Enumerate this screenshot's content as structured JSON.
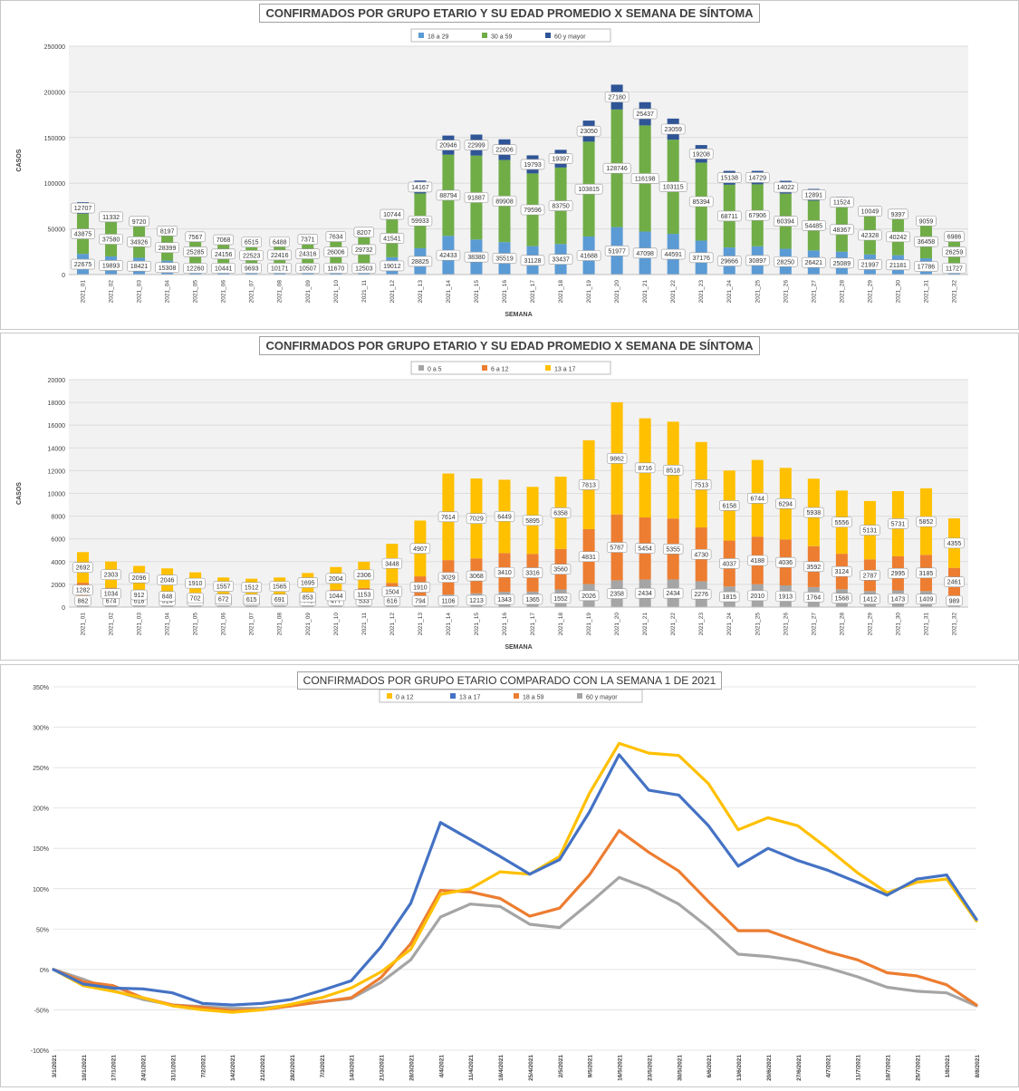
{
  "chart_data": [
    {
      "type": "bar",
      "stacked": true,
      "title": "CONFIRMADOS POR GRUPO ETARIO Y SU EDAD PROMEDIO X SEMANA DE SÍNTOMA",
      "xlabel": "SEMANA",
      "ylabel": "CASOS",
      "ylim": [
        0,
        250000
      ],
      "yticks": [
        "0",
        "50000",
        "100000",
        "150000",
        "200000",
        "250000"
      ],
      "legend_position": "top",
      "categories": [
        "2021_01",
        "2021_02",
        "2021_03",
        "2021_04",
        "2021_05",
        "2021_06",
        "2021_07",
        "2021_08",
        "2021_09",
        "2021_10",
        "2021_11",
        "2021_12",
        "2021_13",
        "2021_14",
        "2021_15",
        "2021_16",
        "2021_17",
        "2021_18",
        "2021_19",
        "2021_20",
        "2021_21",
        "2021_22",
        "2021_23",
        "2021_24",
        "2021_25",
        "2021_26",
        "2021_27",
        "2021_28",
        "2021_29",
        "2021_30",
        "2021_31",
        "2021_32"
      ],
      "series": [
        {
          "name": "18 a 29",
          "color": "#5b9bd5",
          "values": [
            22675,
            19893,
            18421,
            15308,
            12260,
            10441,
            9693,
            10171,
            10507,
            11670,
            12503,
            19012,
            28825,
            42433,
            38380,
            35519,
            31128,
            33437,
            41688,
            51977,
            47098,
            44591,
            37176,
            29666,
            30897,
            28250,
            26421,
            25089,
            21997,
            21181,
            17786,
            11727
          ]
        },
        {
          "name": "30 a 59",
          "color": "#70ad47",
          "values": [
            43875,
            37580,
            34926,
            28399,
            25285,
            24156,
            22523,
            22416,
            24316,
            26006,
            29732,
            41541,
            59933,
            88794,
            91887,
            89908,
            79596,
            83750,
            103815,
            128746,
            116198,
            103115,
            85394,
            68711,
            67906,
            60394,
            54485,
            48367,
            42328,
            40242,
            36458,
            26259
          ]
        },
        {
          "name": "60 y mayor",
          "color": "#2f5597",
          "values": [
            12707,
            11332,
            9720,
            8197,
            7567,
            7068,
            6515,
            6488,
            7371,
            7634,
            8207,
            10744,
            14167,
            20946,
            22999,
            22606,
            19793,
            19397,
            23050,
            27180,
            25437,
            23059,
            19208,
            15138,
            14729,
            14022,
            12891,
            11524,
            10049,
            9397,
            9059,
            6986
          ]
        }
      ]
    },
    {
      "type": "bar",
      "stacked": true,
      "title": "CONFIRMADOS POR GRUPO ETARIO Y SU EDAD PROMEDIO X SEMANA DE SÍNTOMA",
      "xlabel": "SEMANA",
      "ylabel": "CASOS",
      "ylim": [
        0,
        20000
      ],
      "yticks": [
        "0",
        "2000",
        "4000",
        "6000",
        "8000",
        "10000",
        "12000",
        "14000",
        "16000",
        "18000",
        "20000"
      ],
      "legend_position": "top",
      "categories": [
        "2021_01",
        "2021_02",
        "2021_03",
        "2021_04",
        "2021_05",
        "2021_06",
        "2021_07",
        "2021_08",
        "2021_09",
        "2021_10",
        "2021_11",
        "2021_12",
        "2021_13",
        "2021_14",
        "2021_15",
        "2021_16",
        "2021_17",
        "2021_18",
        "2021_19",
        "2021_20",
        "2021_21",
        "2021_22",
        "2021_23",
        "2021_24",
        "2021_25",
        "2021_26",
        "2021_27",
        "2021_28",
        "2021_29",
        "2021_30",
        "2021_31",
        "2021_32"
      ],
      "series": [
        {
          "name": "0 a 5",
          "color": "#a5a5a5",
          "values": [
            862,
            674,
            618,
            514,
            445,
            377,
            371,
            350,
            448,
            477,
            533,
            616,
            794,
            1106,
            1213,
            1343,
            1365,
            1552,
            2026,
            2358,
            2434,
            2434,
            2276,
            1815,
            2010,
            1913,
            1764,
            1568,
            1412,
            1473,
            1409,
            989
          ]
        },
        {
          "name": "6 a 12",
          "color": "#ed7d31",
          "values": [
            1282,
            1034,
            912,
            848,
            702,
            672,
            615,
            691,
            853,
            1044,
            1153,
            1504,
            1910,
            3029,
            3068,
            3410,
            3316,
            3560,
            4831,
            5787,
            5454,
            5355,
            4730,
            4037,
            4188,
            4036,
            3592,
            3124,
            2787,
            2995,
            3185,
            2461
          ]
        },
        {
          "name": "13 a 17",
          "color": "#ffc000",
          "values": [
            2692,
            2303,
            2096,
            2046,
            1910,
            1557,
            1512,
            1565,
            1695,
            2004,
            2306,
            3448,
            4907,
            7614,
            7029,
            6449,
            5895,
            6358,
            7813,
            9862,
            8716,
            8518,
            7513,
            6158,
            6744,
            6294,
            5938,
            5556,
            5131,
            5731,
            5852,
            4355
          ]
        }
      ]
    },
    {
      "type": "line",
      "title": "CONFIRMADOS POR GRUPO ETARIO COMPARADO CON LA SEMANA 1 DE 2021",
      "ylim": [
        -100,
        350
      ],
      "yticks": [
        "-100%",
        "-50%",
        "0%",
        "50%",
        "100%",
        "150%",
        "200%",
        "250%",
        "300%",
        "350%"
      ],
      "legend_position": "top",
      "x": [
        "3/1/2021",
        "10/1/2021",
        "17/1/2021",
        "24/1/2021",
        "31/1/2021",
        "7/2/2021",
        "14/2/2021",
        "21/2/2021",
        "28/2/2021",
        "7/3/2021",
        "14/3/2021",
        "21/3/2021",
        "28/3/2021",
        "4/4/2021",
        "11/4/2021",
        "18/4/2021",
        "25/4/2021",
        "2/5/2021",
        "9/5/2021",
        "16/5/2021",
        "23/5/2021",
        "30/5/2021",
        "6/6/2021",
        "13/6/2021",
        "20/6/2021",
        "27/6/2021",
        "4/7/2021",
        "11/7/2021",
        "18/7/2021",
        "25/7/2021",
        "1/8/2021",
        "8/8/2021"
      ],
      "series": [
        {
          "name": "0 a 12",
          "color": "#ffc000",
          "values": [
            0,
            -20,
            -27,
            -35,
            -45,
            -50,
            -53,
            -50,
            -43,
            -35,
            -23,
            -3,
            25,
            93,
            100,
            121,
            118,
            140,
            218,
            280,
            268,
            265,
            230,
            173,
            188,
            178,
            150,
            120,
            95,
            108,
            112,
            60
          ]
        },
        {
          "name": "13 a 17",
          "color": "#4472c4",
          "values": [
            0,
            -18,
            -23,
            -24,
            -29,
            -42,
            -44,
            -42,
            -37,
            -26,
            -14,
            28,
            82,
            182,
            161,
            140,
            118,
            136,
            195,
            266,
            222,
            216,
            178,
            128,
            150,
            135,
            123,
            108,
            92,
            112,
            117,
            62
          ]
        },
        {
          "name": "18 a 59",
          "color": "#ed7d31",
          "values": [
            0,
            -15,
            -20,
            -35,
            -44,
            -47,
            -51,
            -50,
            -45,
            -40,
            -35,
            -10,
            32,
            98,
            96,
            88,
            66,
            76,
            117,
            172,
            145,
            122,
            84,
            48,
            48,
            35,
            22,
            12,
            -4,
            -8,
            -19,
            -44
          ]
        },
        {
          "name": "60 y mayor",
          "color": "#a5a5a5",
          "values": [
            0,
            -12,
            -26,
            -37,
            -44,
            -46,
            -48,
            -48,
            -44,
            -40,
            -36,
            -16,
            12,
            65,
            81,
            78,
            56,
            52,
            82,
            114,
            100,
            81,
            52,
            19,
            16,
            11,
            2,
            -9,
            -22,
            -27,
            -29,
            -45
          ]
        }
      ]
    }
  ]
}
